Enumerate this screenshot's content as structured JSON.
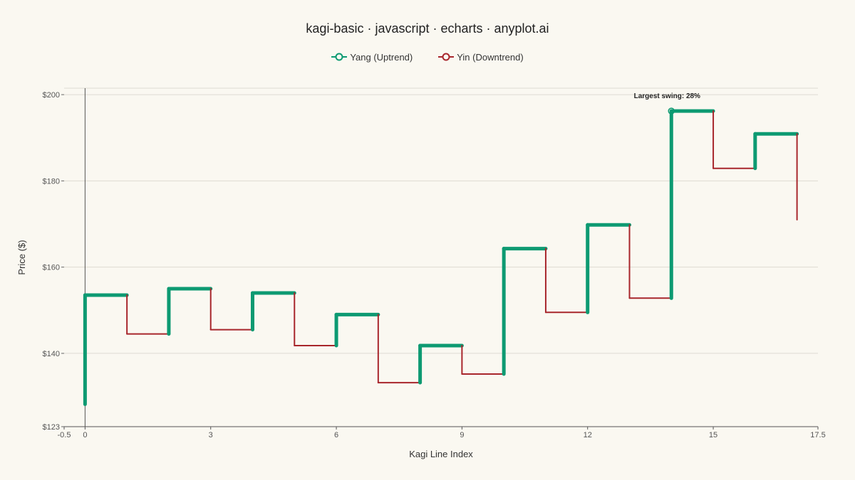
{
  "chart_data": {
    "type": "line",
    "title": "kagi-basic · javascript · echarts · anyplot.ai",
    "xlabel": "Kagi Line Index",
    "ylabel": "Price ($)",
    "xlim": [
      -0.5,
      17.5
    ],
    "ylim": [
      123,
      200
    ],
    "x_ticks": [
      -0.5,
      0,
      3,
      6,
      9,
      12,
      15,
      17.5
    ],
    "x_tick_labels": [
      "-0.5",
      "0",
      "3",
      "6",
      "9",
      "12",
      "15",
      "17.5"
    ],
    "y_ticks": [
      123,
      140,
      160,
      180,
      200
    ],
    "y_tick_labels": [
      "$123",
      "$140",
      "$160",
      "$180",
      "$200"
    ],
    "grid": true,
    "legend_position": "top-center",
    "series": [
      {
        "name": "Yang (Uptrend)",
        "color": "#0D9A72"
      },
      {
        "name": "Yin (Downtrend)",
        "color": "#A8262C"
      }
    ],
    "kagi_path": [
      {
        "x": 0,
        "y": 128.2
      },
      {
        "x": 0,
        "y": 153.5
      },
      {
        "x": 1,
        "y": 153.5
      },
      {
        "x": 1,
        "y": 144.5
      },
      {
        "x": 2,
        "y": 144.5
      },
      {
        "x": 2,
        "y": 155.0
      },
      {
        "x": 3,
        "y": 155.0
      },
      {
        "x": 3,
        "y": 145.5
      },
      {
        "x": 4,
        "y": 145.5
      },
      {
        "x": 4,
        "y": 154.0
      },
      {
        "x": 5,
        "y": 154.0
      },
      {
        "x": 5,
        "y": 141.8
      },
      {
        "x": 6,
        "y": 141.8
      },
      {
        "x": 6,
        "y": 149.0
      },
      {
        "x": 7,
        "y": 149.0
      },
      {
        "x": 7,
        "y": 133.2
      },
      {
        "x": 8,
        "y": 133.2
      },
      {
        "x": 8,
        "y": 141.8
      },
      {
        "x": 9,
        "y": 141.8
      },
      {
        "x": 9,
        "y": 135.2
      },
      {
        "x": 10,
        "y": 135.2
      },
      {
        "x": 10,
        "y": 164.3
      },
      {
        "x": 11,
        "y": 164.3
      },
      {
        "x": 11,
        "y": 149.5
      },
      {
        "x": 12,
        "y": 149.5
      },
      {
        "x": 12,
        "y": 169.8
      },
      {
        "x": 13,
        "y": 169.8
      },
      {
        "x": 13,
        "y": 152.8
      },
      {
        "x": 14,
        "y": 152.8
      },
      {
        "x": 14,
        "y": 196.2
      },
      {
        "x": 15,
        "y": 196.2
      },
      {
        "x": 15,
        "y": 182.9
      },
      {
        "x": 16,
        "y": 182.9
      },
      {
        "x": 16,
        "y": 190.9
      },
      {
        "x": 17,
        "y": 190.9
      },
      {
        "x": 17,
        "y": 171.0
      }
    ],
    "annotations": [
      {
        "text": "Largest swing: 28%",
        "x": 14,
        "y": 196.2
      }
    ]
  }
}
